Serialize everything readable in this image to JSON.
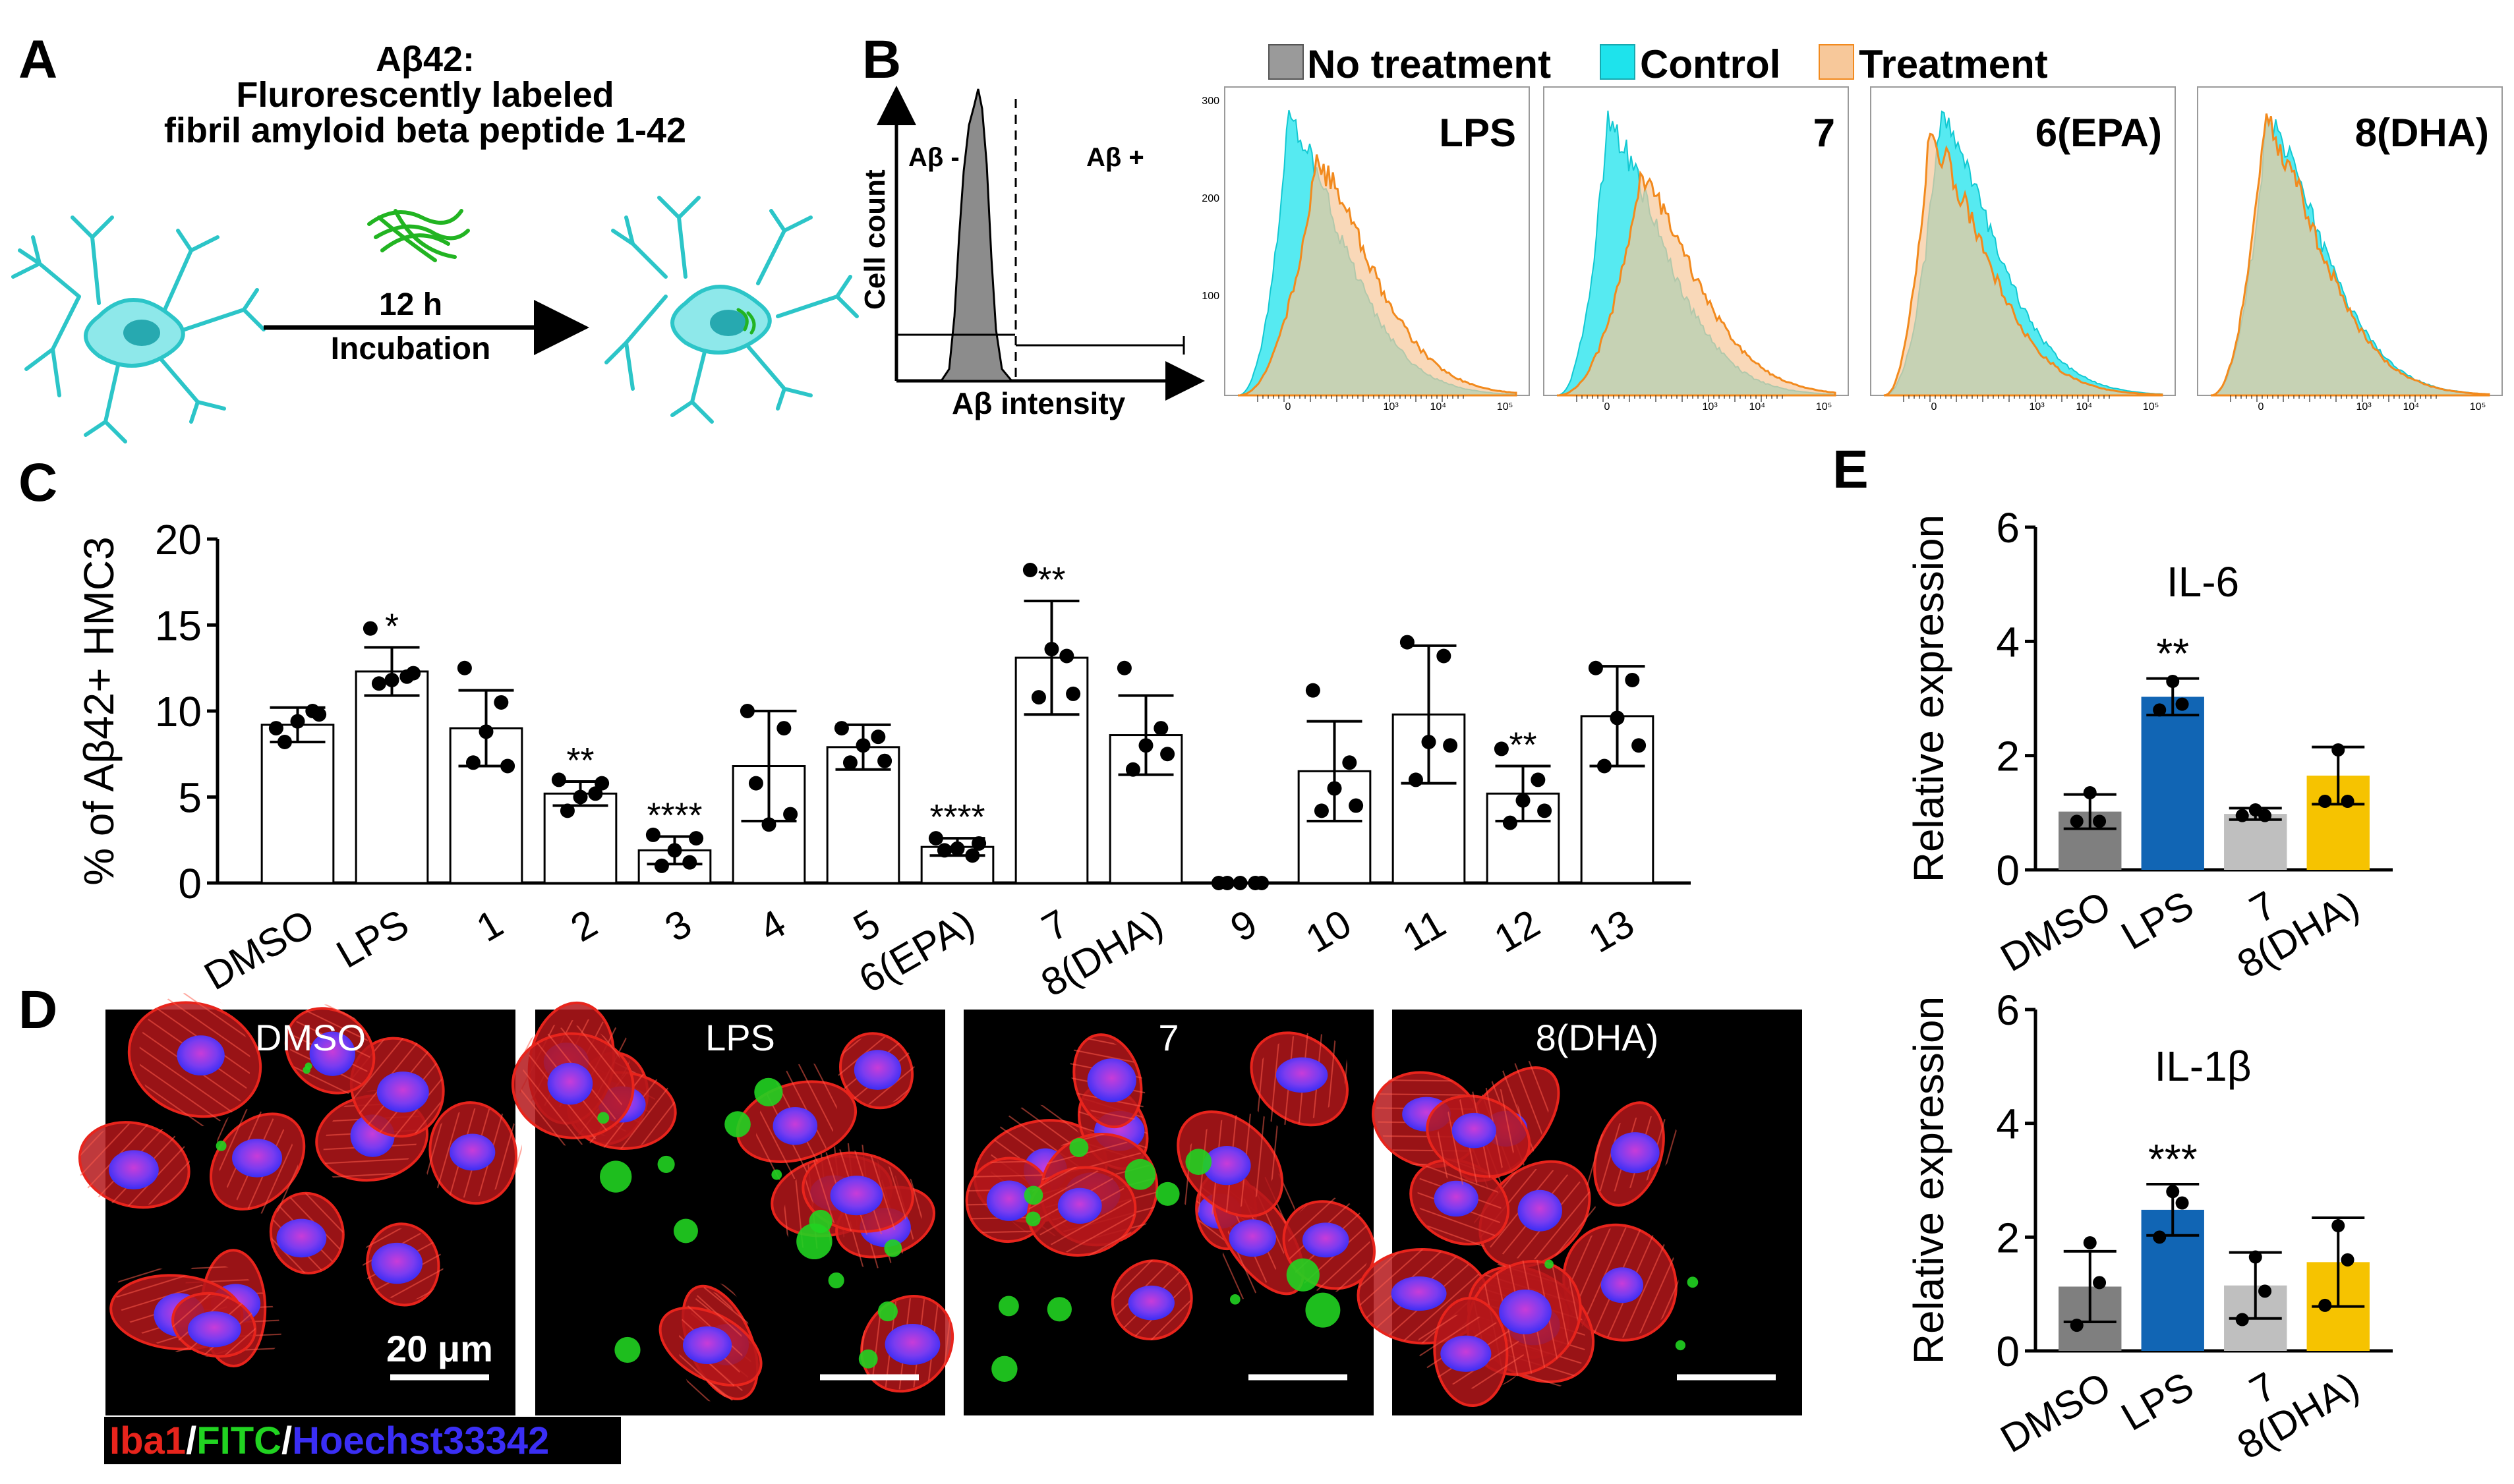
{
  "panels": {
    "a": "A",
    "b": "B",
    "c": "C",
    "d": "D",
    "e": "E"
  },
  "colors": {
    "no_treatment": "#9a9a9a",
    "control": "#1ee3ec",
    "treatment": "#f7c89a",
    "treatment_line": "#f28a1e",
    "overlap": "#c8d89a",
    "dmso_bar": "#7f7f7f",
    "lps_bar": "#1165b4",
    "c7_bar": "#bfbfbf",
    "dha_bar": "#f6c300",
    "iba1": "#e8241c",
    "fitc": "#21d321",
    "hoechst": "#3a2ef5",
    "cell_line": "#2cc5c8"
  },
  "panel_a": {
    "title_line1": "Aβ42:",
    "title_line2": "Flurorescently labeled",
    "title_line3": "fibril amyloid beta peptide 1-42",
    "arrow_top": "12 h",
    "arrow_bottom": "Incubation"
  },
  "panel_b": {
    "legend": [
      "No treatment",
      "Control",
      "Treatment"
    ],
    "gate_neg": "Aβ -",
    "gate_pos": "Aβ +",
    "ylabel": "Cell count",
    "xlabel": "Aβ intensity",
    "ytick_labels": [
      "300",
      "200",
      "100"
    ],
    "xtick_labels": [
      "0",
      "10³",
      "10⁴",
      "10⁵"
    ],
    "histograms": [
      {
        "label": "LPS",
        "control_peak": 0.18,
        "treatment_peak": 0.28,
        "treatment_height": 0.85,
        "shift": "right"
      },
      {
        "label": "7",
        "control_peak": 0.18,
        "treatment_peak": 0.3,
        "treatment_height": 0.78,
        "shift": "right"
      },
      {
        "label": "6(EPA)",
        "control_peak": 0.2,
        "treatment_peak": 0.16,
        "treatment_height": 0.95,
        "shift": "left"
      },
      {
        "label": "8(DHA)",
        "control_peak": 0.2,
        "treatment_peak": 0.19,
        "treatment_height": 1.0,
        "shift": "none"
      }
    ]
  },
  "chart_data": [
    {
      "id": "C",
      "type": "bar",
      "title": "",
      "xlabel": "",
      "ylabel": "% of Aβ42+ HMC3",
      "ylim": [
        0,
        20
      ],
      "yticks": [
        0,
        5,
        10,
        15,
        20
      ],
      "categories": [
        "DMSO",
        "LPS",
        "1",
        "2",
        "3",
        "4",
        "5",
        "6(EPA)",
        "7",
        "8(DHA)",
        "9",
        "10",
        "11",
        "12",
        "13"
      ],
      "values": [
        9.2,
        12.3,
        9.0,
        5.2,
        1.9,
        6.8,
        7.9,
        2.1,
        13.1,
        8.6,
        0.0,
        6.5,
        9.8,
        5.2,
        9.7
      ],
      "errors": [
        1.0,
        1.4,
        2.2,
        0.7,
        0.8,
        3.2,
        1.3,
        0.5,
        3.3,
        2.3,
        0.0,
        2.9,
        4.0,
        1.6,
        2.9
      ],
      "points": [
        [
          9.0,
          10.0,
          8.2,
          9.8,
          9.4
        ],
        [
          14.8,
          12.0,
          11.6,
          12.2,
          11.8
        ],
        [
          12.5,
          10.5,
          7.0,
          6.8,
          8.8
        ],
        [
          6.0,
          5.2,
          4.2,
          5.8,
          5.0
        ],
        [
          2.8,
          1.2,
          1.0,
          2.6,
          1.9
        ],
        [
          10.0,
          9.0,
          5.8,
          4.0,
          3.4
        ],
        [
          9.0,
          8.5,
          7.0,
          7.1,
          8.0
        ],
        [
          2.6,
          1.6,
          1.9,
          2.3,
          2.0
        ],
        [
          18.2,
          13.2,
          10.8,
          11.0,
          13.6
        ],
        [
          12.5,
          9.0,
          6.6,
          7.5,
          8.0
        ],
        [
          0.0,
          0.0,
          0.0,
          0.0,
          0.0
        ],
        [
          11.2,
          7.0,
          4.2,
          4.5,
          5.5
        ],
        [
          14.0,
          13.2,
          6.0,
          8.0,
          8.2
        ],
        [
          7.8,
          6.0,
          3.5,
          4.2,
          4.8
        ],
        [
          12.5,
          11.8,
          6.8,
          8.0,
          9.6
        ]
      ],
      "annotations": [
        "",
        "*",
        "",
        "**",
        "****",
        "",
        "",
        "****",
        "**",
        "",
        "",
        "",
        "",
        "**",
        ""
      ]
    },
    {
      "id": "E-IL6",
      "type": "bar",
      "title": "IL-6",
      "ylabel": "Relative expression",
      "ylim": [
        0,
        6
      ],
      "yticks": [
        0,
        2,
        4,
        6
      ],
      "categories": [
        "DMSO",
        "LPS",
        "7",
        "8(DHA)"
      ],
      "values": [
        1.02,
        3.03,
        0.98,
        1.65
      ],
      "errors": [
        0.3,
        0.32,
        0.1,
        0.5
      ],
      "points": [
        [
          1.35,
          0.85,
          0.85
        ],
        [
          3.3,
          2.9,
          2.8
        ],
        [
          1.05,
          0.95,
          0.95
        ],
        [
          2.1,
          1.2,
          1.2
        ]
      ],
      "annotations": [
        "",
        "**",
        "",
        ""
      ]
    },
    {
      "id": "E-IL1b",
      "type": "bar",
      "title": "IL-1β",
      "ylabel": "Relative expression",
      "ylim": [
        0,
        6
      ],
      "yticks": [
        0,
        2,
        4,
        6
      ],
      "categories": [
        "DMSO",
        "LPS",
        "7",
        "8(DHA)"
      ],
      "values": [
        1.13,
        2.48,
        1.15,
        1.56
      ],
      "errors": [
        0.62,
        0.45,
        0.58,
        0.78
      ],
      "points": [
        [
          1.9,
          1.2,
          0.45
        ],
        [
          2.8,
          2.6,
          2.0
        ],
        [
          1.65,
          1.05,
          0.55
        ],
        [
          2.2,
          1.6,
          0.8
        ]
      ],
      "annotations": [
        "",
        "***",
        "",
        ""
      ]
    }
  ],
  "panel_d": {
    "images": [
      "DMSO",
      "LPS",
      "7",
      "8(DHA)"
    ],
    "scale": "20 μm",
    "legend": {
      "iba1": "Iba1",
      "sep": "/",
      "fitc": "FITC",
      "hoechst": "Hoechst33342"
    }
  }
}
